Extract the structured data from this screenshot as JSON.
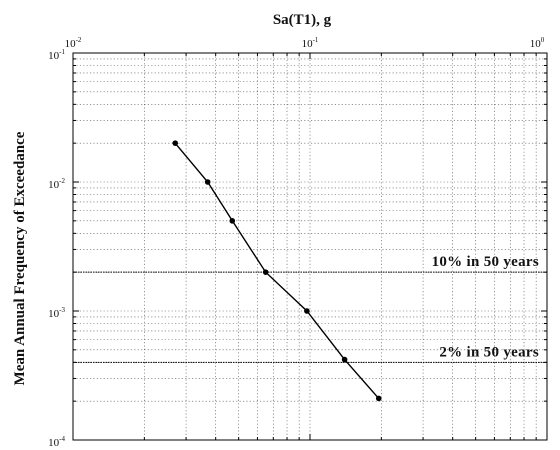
{
  "chart_data": {
    "type": "line",
    "xlabel": "Sa(T1), g",
    "ylabel": "Mean Annual Frequency of Exceedance",
    "xscale": "log",
    "yscale": "log",
    "xlim": [
      0.01,
      1
    ],
    "ylim": [
      0.0001,
      0.1
    ],
    "x_axis_position": "top",
    "grid": true,
    "x_ticks": [
      {
        "base": "10",
        "exp": "-2",
        "value": 0.01
      },
      {
        "base": "10",
        "exp": "-1",
        "value": 0.1
      },
      {
        "base": "10",
        "exp": "0",
        "value": 1
      }
    ],
    "y_ticks": [
      {
        "base": "10",
        "exp": "-1",
        "value": 0.1
      },
      {
        "base": "10",
        "exp": "-2",
        "value": 0.01
      },
      {
        "base": "10",
        "exp": "-3",
        "value": 0.001
      },
      {
        "base": "10",
        "exp": "-4",
        "value": 0.0001
      }
    ],
    "series": [
      {
        "x": [
          0.027,
          0.037,
          0.047,
          0.065,
          0.097,
          0.14,
          0.195
        ],
        "y": [
          0.02,
          0.01,
          0.005,
          0.002,
          0.001,
          0.00042,
          0.00021
        ],
        "color": "#000000",
        "marker": "circle"
      }
    ],
    "reference_lines": [
      {
        "y": 0.002,
        "label": "10% in 50 years"
      },
      {
        "y": 0.0004,
        "label": "2% in 50 years"
      }
    ]
  }
}
